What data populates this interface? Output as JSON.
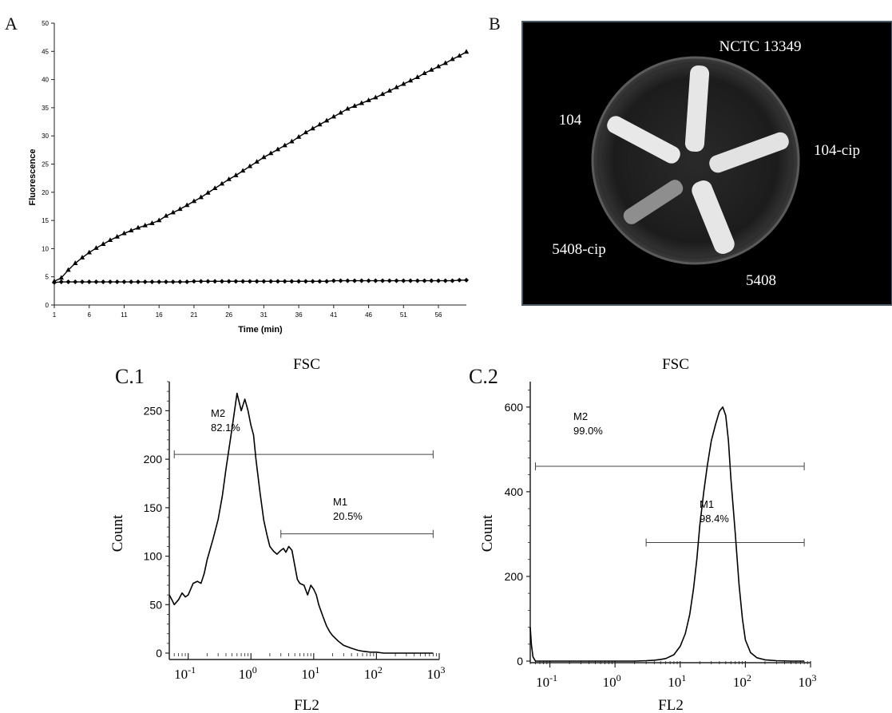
{
  "panels": {
    "A": "A",
    "B": "B",
    "C1": "C.1",
    "C2": "C.2"
  },
  "chart_data": [
    {
      "id": "A",
      "type": "line",
      "xlabel": "Time (min)",
      "ylabel": "Fluorescence",
      "xticks": [
        1,
        6,
        11,
        16,
        21,
        26,
        31,
        36,
        41,
        46,
        51,
        56
      ],
      "yticks": [
        0,
        5,
        10,
        15,
        20,
        25,
        30,
        35,
        40,
        45,
        50
      ],
      "xlim": [
        1,
        60
      ],
      "ylim": [
        0,
        50
      ],
      "grid": false,
      "series": [
        {
          "marker": "triangle",
          "x": [
            1,
            2,
            3,
            4,
            5,
            6,
            7,
            8,
            9,
            10,
            11,
            12,
            13,
            14,
            15,
            16,
            17,
            18,
            19,
            20,
            21,
            22,
            23,
            24,
            25,
            26,
            27,
            28,
            29,
            30,
            31,
            32,
            33,
            34,
            35,
            36,
            37,
            38,
            39,
            40,
            41,
            42,
            43,
            44,
            45,
            46,
            47,
            48,
            49,
            50,
            51,
            52,
            53,
            54,
            55,
            56,
            57,
            58,
            59,
            60
          ],
          "values": [
            4.2,
            4.8,
            6.2,
            7.4,
            8.4,
            9.3,
            10.1,
            10.8,
            11.5,
            12.1,
            12.7,
            13.2,
            13.7,
            14.1,
            14.5,
            15.0,
            15.8,
            16.4,
            17.0,
            17.7,
            18.4,
            19.1,
            19.9,
            20.7,
            21.5,
            22.3,
            23.0,
            23.8,
            24.6,
            25.4,
            26.2,
            26.9,
            27.6,
            28.3,
            29.0,
            29.8,
            30.6,
            31.3,
            32.0,
            32.7,
            33.4,
            34.1,
            34.8,
            35.3,
            35.8,
            36.3,
            36.8,
            37.4,
            38.0,
            38.6,
            39.2,
            39.8,
            40.4,
            41.1,
            41.7,
            42.3,
            42.9,
            43.6,
            44.2,
            44.9
          ]
        },
        {
          "marker": "diamond",
          "x": [
            1,
            2,
            3,
            4,
            5,
            6,
            7,
            8,
            9,
            10,
            11,
            12,
            13,
            14,
            15,
            16,
            17,
            18,
            19,
            20,
            21,
            22,
            23,
            24,
            25,
            26,
            27,
            28,
            29,
            30,
            31,
            32,
            33,
            34,
            35,
            36,
            37,
            38,
            39,
            40,
            41,
            42,
            43,
            44,
            45,
            46,
            47,
            48,
            49,
            50,
            51,
            52,
            53,
            54,
            55,
            56,
            57,
            58,
            59,
            60
          ],
          "values": [
            4.0,
            4.1,
            4.1,
            4.1,
            4.1,
            4.1,
            4.1,
            4.1,
            4.1,
            4.1,
            4.1,
            4.1,
            4.1,
            4.1,
            4.1,
            4.1,
            4.1,
            4.1,
            4.1,
            4.1,
            4.2,
            4.2,
            4.2,
            4.2,
            4.2,
            4.2,
            4.2,
            4.2,
            4.2,
            4.2,
            4.2,
            4.2,
            4.2,
            4.2,
            4.2,
            4.2,
            4.2,
            4.2,
            4.2,
            4.2,
            4.3,
            4.3,
            4.3,
            4.3,
            4.3,
            4.3,
            4.3,
            4.3,
            4.3,
            4.3,
            4.3,
            4.3,
            4.3,
            4.3,
            4.3,
            4.3,
            4.3,
            4.3,
            4.4,
            4.4
          ]
        }
      ]
    },
    {
      "id": "C.1",
      "type": "line",
      "title": "FSC",
      "xlabel": "FL2",
      "ylabel": "Count",
      "xscale": "log",
      "xlim": [
        0.05,
        1000
      ],
      "ylim": [
        0,
        280
      ],
      "xticks": [
        "10^-1",
        "10^0",
        "10^1",
        "10^2",
        "10^3"
      ],
      "yticks": [
        0,
        50,
        100,
        150,
        200,
        250
      ],
      "markers": [
        {
          "name": "M2",
          "pct": "82.1%",
          "from": 0.06,
          "to": 800,
          "y": 205
        },
        {
          "name": "M1",
          "pct": "20.5%",
          "from": 3,
          "to": 800,
          "y": 123
        }
      ],
      "series": [
        {
          "x": [
            0.05,
            0.055,
            0.06,
            0.07,
            0.08,
            0.09,
            0.1,
            0.12,
            0.14,
            0.16,
            0.18,
            0.2,
            0.25,
            0.3,
            0.35,
            0.4,
            0.5,
            0.6,
            0.7,
            0.8,
            0.9,
            1.0,
            1.1,
            1.2,
            1.4,
            1.6,
            1.8,
            2.0,
            2.3,
            2.6,
            3.0,
            3.3,
            3.6,
            4.0,
            4.5,
            5.0,
            5.5,
            6.0,
            7,
            8,
            9,
            10,
            11,
            12,
            14,
            16,
            18,
            20,
            25,
            30,
            40,
            50,
            60,
            80,
            100,
            130,
            160,
            200,
            300,
            500,
            800
          ],
          "values": [
            60,
            55,
            50,
            55,
            62,
            58,
            60,
            72,
            74,
            72,
            82,
            96,
            118,
            138,
            162,
            190,
            232,
            268,
            250,
            262,
            250,
            235,
            225,
            200,
            165,
            137,
            122,
            110,
            105,
            102,
            106,
            108,
            104,
            110,
            106,
            90,
            76,
            72,
            70,
            60,
            70,
            66,
            60,
            50,
            38,
            28,
            22,
            18,
            12,
            8,
            5,
            3,
            2,
            1,
            1,
            0,
            0,
            0,
            0,
            0,
            0
          ]
        }
      ]
    },
    {
      "id": "C.2",
      "type": "line",
      "title": "FSC",
      "xlabel": "FL2",
      "ylabel": "Count",
      "xscale": "log",
      "xlim": [
        0.05,
        1000
      ],
      "ylim": [
        0,
        660
      ],
      "xticks": [
        "10^-1",
        "10^0",
        "10^1",
        "10^2",
        "10^3"
      ],
      "yticks": [
        0,
        200,
        400,
        600
      ],
      "markers": [
        {
          "name": "M2",
          "pct": "99.0%",
          "from": 0.06,
          "to": 800,
          "y": 460
        },
        {
          "name": "M1",
          "pct": "98.4%",
          "from": 3,
          "to": 800,
          "y": 280
        }
      ],
      "series": [
        {
          "x": [
            0.05,
            0.052,
            0.055,
            0.06,
            0.07,
            0.1,
            0.3,
            1,
            2,
            3,
            4,
            5,
            6,
            8,
            10,
            12,
            14,
            16,
            18,
            20,
            23,
            26,
            30,
            35,
            40,
            45,
            50,
            55,
            60,
            70,
            80,
            90,
            100,
            120,
            150,
            200,
            300,
            500,
            800
          ],
          "values": [
            80,
            40,
            10,
            0,
            0,
            0,
            0,
            0,
            0,
            1,
            2,
            4,
            6,
            15,
            35,
            65,
            110,
            170,
            240,
            320,
            400,
            460,
            520,
            560,
            590,
            600,
            580,
            520,
            430,
            300,
            180,
            100,
            50,
            20,
            8,
            3,
            1,
            0,
            0
          ]
        }
      ]
    }
  ],
  "photo": {
    "labels": {
      "top": "NCTC 13349",
      "left": "104",
      "right": "104-cip",
      "bottom_left": "5408-cip",
      "bottom": "5408"
    }
  }
}
